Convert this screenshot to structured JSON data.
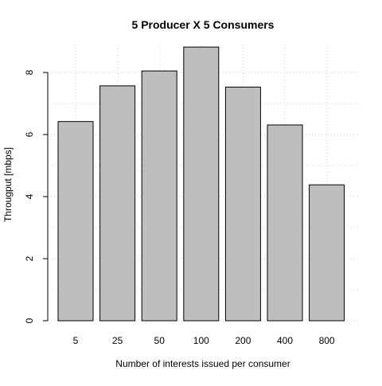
{
  "chart_data": {
    "type": "bar",
    "title": "5 Producer X 5 Consumers",
    "xlabel": "Number of interests issued per consumer",
    "ylabel": "Througput [mbps]",
    "categories": [
      "5",
      "25",
      "50",
      "100",
      "200",
      "400",
      "800"
    ],
    "values": [
      6.42,
      7.57,
      8.05,
      8.82,
      7.53,
      6.31,
      4.38
    ],
    "ylim": [
      0,
      8.9
    ],
    "yticks": [
      0,
      2,
      4,
      6,
      8
    ],
    "grid": true,
    "legend": "none",
    "colors": {
      "bar_fill": "#bebebe",
      "bar_stroke": "#000000",
      "grid": "#d3d3d3",
      "axis": "#000000"
    }
  }
}
